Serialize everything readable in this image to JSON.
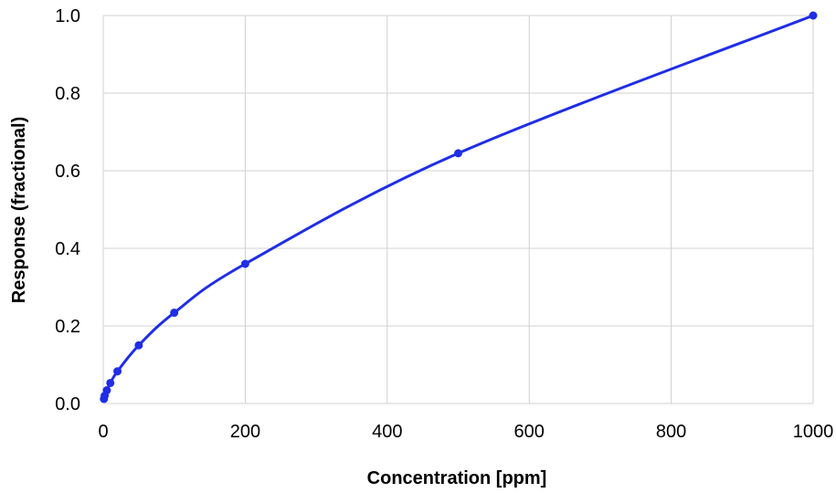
{
  "chart_data": {
    "type": "line",
    "xlabel": "Concentration [ppm]",
    "ylabel": "Response (fractional)",
    "xlim": [
      0,
      1000
    ],
    "ylim": [
      0,
      1.0
    ],
    "x_ticks": [
      "0",
      "200",
      "400",
      "600",
      "800",
      "1000"
    ],
    "y_ticks": [
      "0.0",
      "0.2",
      "0.4",
      "0.6",
      "0.8",
      "1.0"
    ],
    "grid": true,
    "legend": "none",
    "series": [
      {
        "color": "#1f2ee6",
        "x": [
          1,
          2,
          5,
          10,
          20,
          50,
          100,
          200,
          500,
          1000
        ],
        "y": [
          0.012,
          0.02,
          0.034,
          0.053,
          0.083,
          0.15,
          0.234,
          0.36,
          0.645,
          1.0
        ]
      }
    ],
    "colors": {
      "grid": "#d0d0d0",
      "line": "#1f2ee6"
    }
  }
}
